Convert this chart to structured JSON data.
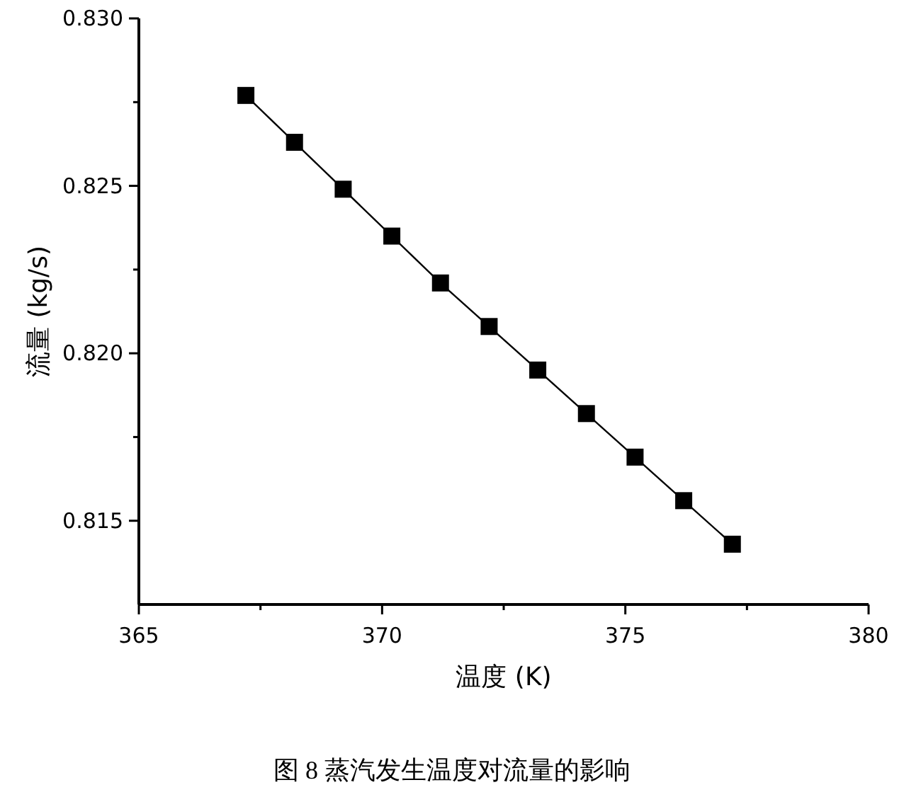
{
  "chart_data": {
    "type": "line",
    "xlabel": "温度 (K)",
    "ylabel": "流量 (kg/s)",
    "x": [
      367.2,
      368.2,
      369.2,
      370.2,
      371.2,
      372.2,
      373.2,
      374.2,
      375.2,
      376.2,
      377.2
    ],
    "series": [
      {
        "color": "#000000",
        "values": [
          0.8277,
          0.8263,
          0.8249,
          0.8235,
          0.8221,
          0.8208,
          0.8195,
          0.8182,
          0.8169,
          0.8156,
          0.8143
        ]
      }
    ],
    "marker": "square",
    "line_style": "solid",
    "xlim": [
      365,
      380
    ],
    "xticks": [
      365,
      {
        "value": 367.5,
        "label": null
      },
      370,
      {
        "value": 372.5,
        "label": null
      },
      375,
      {
        "value": 377.5,
        "label": null
      },
      380
    ],
    "ylim": [
      0.8125,
      0.83
    ],
    "yticks": [
      {
        "value": 0.815,
        "label": "0.815"
      },
      {
        "value": 0.8175,
        "label": null
      },
      {
        "value": 0.82,
        "label": "0.820"
      },
      {
        "value": 0.8225,
        "label": null
      },
      {
        "value": 0.825,
        "label": "0.825"
      },
      {
        "value": 0.8275,
        "label": null
      },
      {
        "value": 0.83,
        "label": "0.830"
      }
    ],
    "annotations": [
      "图 8  蒸汽发生温度对流量的影响"
    ]
  }
}
